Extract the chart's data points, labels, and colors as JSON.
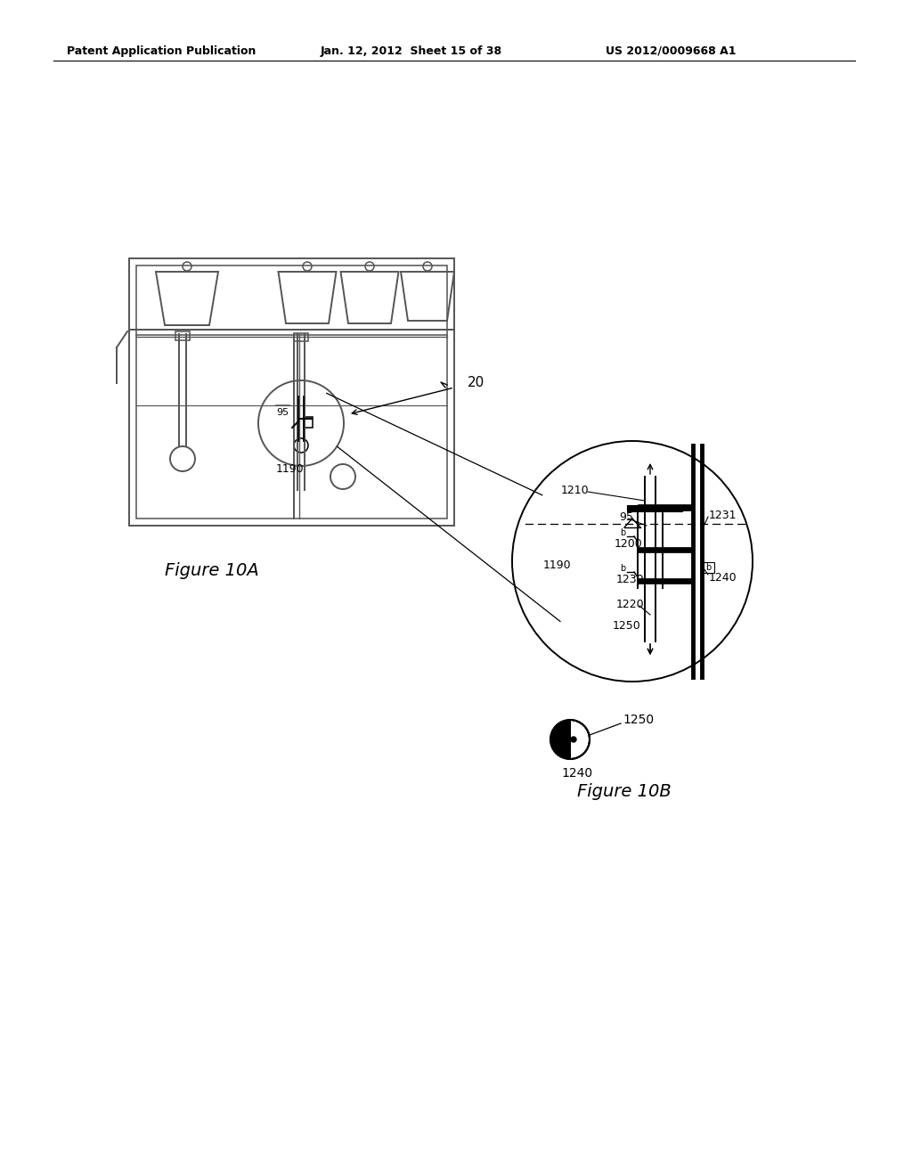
{
  "bg_color": "#ffffff",
  "header_left": "Patent Application Publication",
  "header_mid": "Jan. 12, 2012  Sheet 15 of 38",
  "header_right": "US 2012/0009668 A1",
  "fig10a_label": "Figure 10A",
  "fig10b_label": "Figure 10B",
  "label_20": "20",
  "label_1190_a": "1190",
  "label_95_a": "95",
  "label_1210": "1210",
  "label_95_b": "95",
  "label_1200": "1200",
  "label_1190_b": "1190",
  "label_1230": "1230",
  "label_1220": "1220",
  "label_1250_b": "1250",
  "label_1231": "1231",
  "label_1240_b": "1240",
  "label_1240_c": "1240",
  "label_1250_c": "1250"
}
